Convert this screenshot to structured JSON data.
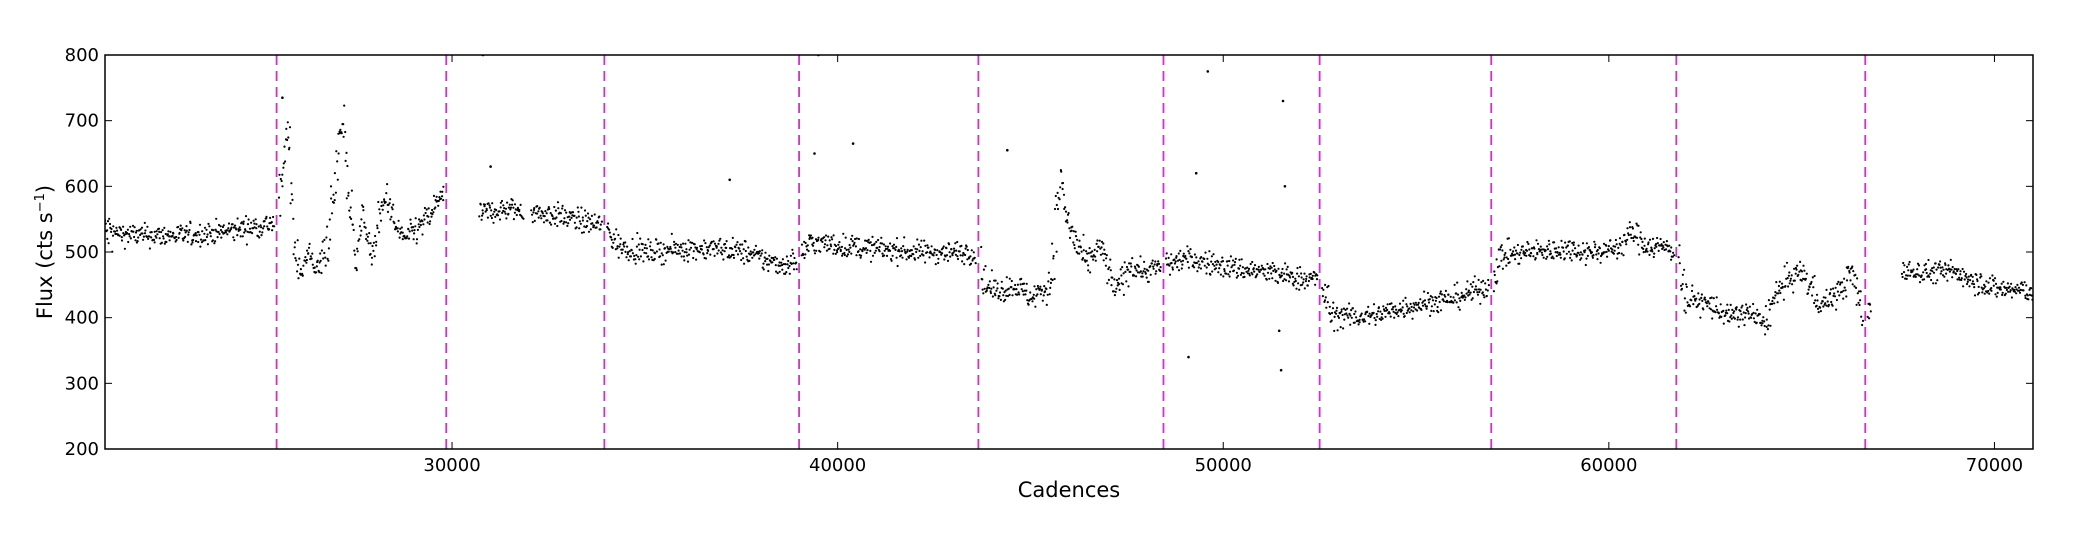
{
  "chart_data": {
    "type": "scatter",
    "title": "",
    "xlabel": "Cadences",
    "ylabel_main": "Flux (cts s",
    "ylabel_exp": "−1",
    "ylabel_close": ")",
    "xlim": [
      21000,
      71000
    ],
    "ylim": [
      200,
      800
    ],
    "xticks": [
      30000,
      40000,
      50000,
      60000,
      70000
    ],
    "xtick_labels": [
      "30000",
      "40000",
      "50000",
      "60000",
      "70000"
    ],
    "yticks": [
      200,
      300,
      400,
      500,
      600,
      700,
      800
    ],
    "ytick_labels": [
      "200",
      "300",
      "400",
      "500",
      "600",
      "700",
      "800"
    ],
    "grid": false,
    "legend": "none",
    "marker_color": "#000000",
    "vline_color": "#cc33cc",
    "vline_style": "dashed",
    "segment_boundaries": [
      25450,
      29850,
      33950,
      39000,
      43650,
      48450,
      52500,
      56950,
      61750,
      66650
    ],
    "flux_profile": [
      [
        21000,
        530
      ],
      [
        22000,
        525
      ],
      [
        23000,
        525
      ],
      [
        24000,
        530
      ],
      [
        25000,
        540
      ],
      [
        25450,
        545
      ],
      [
        25600,
        600
      ],
      [
        25700,
        680
      ],
      [
        25800,
        650
      ],
      [
        25900,
        520
      ],
      [
        26100,
        470
      ],
      [
        26300,
        500
      ],
      [
        26500,
        470
      ],
      [
        26700,
        500
      ],
      [
        26900,
        560
      ],
      [
        27100,
        680
      ],
      [
        27200,
        700
      ],
      [
        27300,
        600
      ],
      [
        27500,
        490
      ],
      [
        27700,
        560
      ],
      [
        27900,
        490
      ],
      [
        28100,
        540
      ],
      [
        28300,
        590
      ],
      [
        28500,
        540
      ],
      [
        28800,
        520
      ],
      [
        29200,
        540
      ],
      [
        29500,
        560
      ],
      [
        29700,
        590
      ],
      [
        29850,
        560
      ],
      [
        30700,
        560
      ],
      [
        31500,
        565
      ],
      [
        32200,
        560
      ],
      [
        32800,
        555
      ],
      [
        33500,
        545
      ],
      [
        33950,
        540
      ],
      [
        34300,
        510
      ],
      [
        35000,
        500
      ],
      [
        36000,
        505
      ],
      [
        37000,
        505
      ],
      [
        37600,
        500
      ],
      [
        38000,
        490
      ],
      [
        38600,
        480
      ],
      [
        39000,
        490
      ],
      [
        39300,
        515
      ],
      [
        40000,
        510
      ],
      [
        41000,
        505
      ],
      [
        42000,
        500
      ],
      [
        43000,
        500
      ],
      [
        43650,
        500
      ],
      [
        43800,
        450
      ],
      [
        44200,
        440
      ],
      [
        44600,
        450
      ],
      [
        45000,
        430
      ],
      [
        45500,
        450
      ],
      [
        45800,
        620
      ],
      [
        45900,
        560
      ],
      [
        46200,
        510
      ],
      [
        46500,
        480
      ],
      [
        46800,
        510
      ],
      [
        47200,
        440
      ],
      [
        47600,
        480
      ],
      [
        48000,
        470
      ],
      [
        48450,
        480
      ],
      [
        49000,
        490
      ],
      [
        49500,
        485
      ],
      [
        50000,
        478
      ],
      [
        51000,
        470
      ],
      [
        51500,
        465
      ],
      [
        52000,
        460
      ],
      [
        52500,
        458
      ],
      [
        52800,
        405
      ],
      [
        53500,
        400
      ],
      [
        54000,
        405
      ],
      [
        55000,
        420
      ],
      [
        56000,
        430
      ],
      [
        56500,
        440
      ],
      [
        56950,
        450
      ],
      [
        57200,
        495
      ],
      [
        58000,
        500
      ],
      [
        59000,
        505
      ],
      [
        59500,
        500
      ],
      [
        60200,
        505
      ],
      [
        60600,
        530
      ],
      [
        61000,
        510
      ],
      [
        61750,
        505
      ],
      [
        62000,
        430
      ],
      [
        62600,
        420
      ],
      [
        63200,
        400
      ],
      [
        63600,
        410
      ],
      [
        64000,
        390
      ],
      [
        64500,
        450
      ],
      [
        65000,
        470
      ],
      [
        65500,
        420
      ],
      [
        66000,
        440
      ],
      [
        66300,
        470
      ],
      [
        66650,
        390
      ],
      [
        67000,
        470
      ],
      [
        68000,
        470
      ],
      [
        69000,
        470
      ],
      [
        70000,
        445
      ],
      [
        71000,
        440
      ]
    ],
    "noise_amplitude": 12,
    "gaps": [
      [
        29850,
        30700
      ],
      [
        31850,
        32050
      ],
      [
        66800,
        67600
      ]
    ],
    "outliers": [
      [
        30800,
        800
      ],
      [
        31000,
        630
      ],
      [
        37200,
        610
      ],
      [
        39500,
        800
      ],
      [
        39400,
        650
      ],
      [
        40400,
        665
      ],
      [
        44400,
        655
      ],
      [
        49300,
        620
      ],
      [
        49600,
        775
      ],
      [
        49100,
        340
      ],
      [
        51550,
        730
      ],
      [
        51500,
        320
      ],
      [
        51600,
        600
      ],
      [
        51450,
        380
      ],
      [
        25600,
        735
      ]
    ]
  }
}
